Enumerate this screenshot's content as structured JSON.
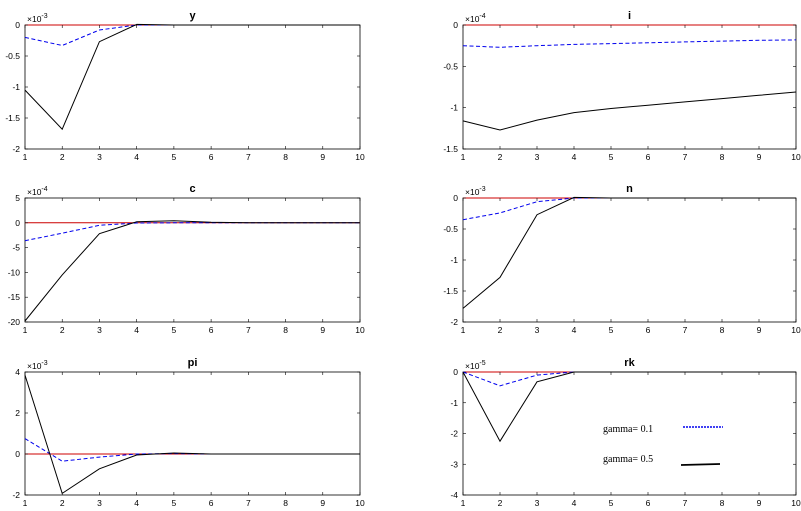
{
  "chart_data": [
    {
      "type": "line",
      "title": "y",
      "exponent_label": "×10",
      "exponent_power": "-3",
      "x": [
        1,
        2,
        3,
        4,
        5,
        6,
        7,
        8,
        9,
        10
      ],
      "xlim": [
        1,
        10
      ],
      "ylim": [
        -2,
        0
      ],
      "xticks": [
        "1",
        "2",
        "3",
        "4",
        "5",
        "6",
        "7",
        "8",
        "9",
        "10"
      ],
      "yticks": [
        {
          "v": 0,
          "t": "0"
        },
        {
          "v": -0.5,
          "t": "-0.5"
        },
        {
          "v": -1,
          "t": "-1"
        },
        {
          "v": -1.5,
          "t": "-1.5"
        },
        {
          "v": -2,
          "t": "-2"
        }
      ],
      "zero_line": 0,
      "series": [
        {
          "key": "dashed",
          "values": [
            -0.2,
            -0.33,
            -0.08,
            0.0,
            0.0,
            0.0,
            0.0,
            0.0,
            0.0,
            0.0
          ]
        },
        {
          "key": "solid",
          "values": [
            -1.05,
            -1.68,
            -0.27,
            0.01,
            0.0,
            0.0,
            0.0,
            0.0,
            0.0,
            0.0
          ]
        }
      ]
    },
    {
      "type": "line",
      "title": "i",
      "exponent_label": "×10",
      "exponent_power": "-4",
      "x": [
        1,
        2,
        3,
        4,
        5,
        6,
        7,
        8,
        9,
        10
      ],
      "xlim": [
        1,
        10
      ],
      "ylim": [
        -1.5,
        0
      ],
      "xticks": [
        "1",
        "2",
        "3",
        "4",
        "5",
        "6",
        "7",
        "8",
        "9",
        "10"
      ],
      "yticks": [
        {
          "v": 0,
          "t": "0"
        },
        {
          "v": -0.5,
          "t": "-0.5"
        },
        {
          "v": -1,
          "t": "-1"
        },
        {
          "v": -1.5,
          "t": "-1.5"
        }
      ],
      "zero_line": 0,
      "series": [
        {
          "key": "dashed",
          "values": [
            -0.25,
            -0.27,
            -0.25,
            -0.235,
            -0.225,
            -0.215,
            -0.205,
            -0.195,
            -0.185,
            -0.18
          ]
        },
        {
          "key": "solid",
          "values": [
            -1.16,
            -1.27,
            -1.15,
            -1.06,
            -1.01,
            -0.97,
            -0.93,
            -0.89,
            -0.85,
            -0.81
          ]
        }
      ]
    },
    {
      "type": "line",
      "title": "c",
      "exponent_label": "×10",
      "exponent_power": "-4",
      "x": [
        1,
        2,
        3,
        4,
        5,
        6,
        7,
        8,
        9,
        10
      ],
      "xlim": [
        1,
        10
      ],
      "ylim": [
        -20,
        5
      ],
      "xticks": [
        "1",
        "2",
        "3",
        "4",
        "5",
        "6",
        "7",
        "8",
        "9",
        "10"
      ],
      "yticks": [
        {
          "v": 5,
          "t": "5"
        },
        {
          "v": 0,
          "t": "0"
        },
        {
          "v": -5,
          "t": "-5"
        },
        {
          "v": -10,
          "t": "-10"
        },
        {
          "v": -15,
          "t": "-15"
        },
        {
          "v": -20,
          "t": "-20"
        }
      ],
      "zero_line": 0,
      "series": [
        {
          "key": "dashed",
          "values": [
            -3.6,
            -2.1,
            -0.5,
            -0.05,
            0.0,
            0.0,
            0.0,
            0.0,
            0.0,
            0.0
          ]
        },
        {
          "key": "solid",
          "values": [
            -19.8,
            -10.5,
            -2.2,
            0.2,
            0.4,
            0.1,
            0.0,
            0.0,
            0.0,
            0.0
          ]
        }
      ]
    },
    {
      "type": "line",
      "title": "n",
      "exponent_label": "×10",
      "exponent_power": "-3",
      "x": [
        1,
        2,
        3,
        4,
        5,
        6,
        7,
        8,
        9,
        10
      ],
      "xlim": [
        1,
        10
      ],
      "ylim": [
        -2,
        0
      ],
      "xticks": [
        "1",
        "2",
        "3",
        "4",
        "5",
        "6",
        "7",
        "8",
        "9",
        "10"
      ],
      "yticks": [
        {
          "v": 0,
          "t": "0"
        },
        {
          "v": -0.5,
          "t": "-0.5"
        },
        {
          "v": -1,
          "t": "-1"
        },
        {
          "v": -1.5,
          "t": "-1.5"
        },
        {
          "v": -2,
          "t": "-2"
        }
      ],
      "zero_line": 0,
      "series": [
        {
          "key": "dashed",
          "values": [
            -0.35,
            -0.24,
            -0.06,
            0.0,
            0.0,
            0.0,
            0.0,
            0.0,
            0.0,
            0.0
          ]
        },
        {
          "key": "solid",
          "values": [
            -1.78,
            -1.28,
            -0.27,
            0.01,
            0.0,
            0.0,
            0.0,
            0.0,
            0.0,
            0.0
          ]
        }
      ]
    },
    {
      "type": "line",
      "title": "pi",
      "exponent_label": "×10",
      "exponent_power": "-3",
      "x": [
        1,
        2,
        3,
        4,
        5,
        6,
        7,
        8,
        9,
        10
      ],
      "xlim": [
        1,
        10
      ],
      "ylim": [
        -2,
        4
      ],
      "xticks": [
        "1",
        "2",
        "3",
        "4",
        "5",
        "6",
        "7",
        "8",
        "9",
        "10"
      ],
      "yticks": [
        {
          "v": 4,
          "t": "4"
        },
        {
          "v": 2,
          "t": "2"
        },
        {
          "v": 0,
          "t": "0"
        },
        {
          "v": -2,
          "t": "-2"
        }
      ],
      "zero_line": 0,
      "series": [
        {
          "key": "dashed",
          "values": [
            0.75,
            -0.35,
            -0.15,
            0.0,
            0.02,
            0.0,
            0.0,
            0.0,
            0.0,
            0.0
          ]
        },
        {
          "key": "solid",
          "values": [
            3.85,
            -1.92,
            -0.72,
            -0.05,
            0.05,
            0.0,
            0.0,
            0.0,
            0.0,
            0.0
          ]
        }
      ]
    },
    {
      "type": "line",
      "title": "rk",
      "exponent_label": "×10",
      "exponent_power": "-5",
      "x": [
        1,
        2,
        3,
        4,
        5,
        6,
        7,
        8,
        9,
        10
      ],
      "xlim": [
        1,
        10
      ],
      "ylim": [
        -4,
        0
      ],
      "xticks": [
        "1",
        "2",
        "3",
        "4",
        "5",
        "6",
        "7",
        "8",
        "9",
        "10"
      ],
      "yticks": [
        {
          "v": 0,
          "t": "0"
        },
        {
          "v": -1,
          "t": "-1"
        },
        {
          "v": -2,
          "t": "-2"
        },
        {
          "v": -3,
          "t": "-3"
        },
        {
          "v": -4,
          "t": "-4"
        }
      ],
      "zero_line": 0,
      "series": [
        {
          "key": "dashed",
          "values": [
            0.0,
            -0.45,
            -0.1,
            0.0,
            0.0,
            0.0,
            0.0,
            0.0,
            0.0,
            0.0
          ]
        },
        {
          "key": "solid",
          "values": [
            0.0,
            -2.25,
            -0.32,
            0.0,
            0.0,
            0.0,
            0.0,
            0.0,
            0.0,
            0.0
          ]
        }
      ],
      "legend": [
        {
          "key": "dashed",
          "label": "gamma= 0.1"
        },
        {
          "key": "solid",
          "label": "gamma= 0.5"
        }
      ]
    }
  ],
  "style": {
    "dashed_color": "#0000ee",
    "solid_color": "#000000",
    "zero_line_color": "#cc0000"
  }
}
